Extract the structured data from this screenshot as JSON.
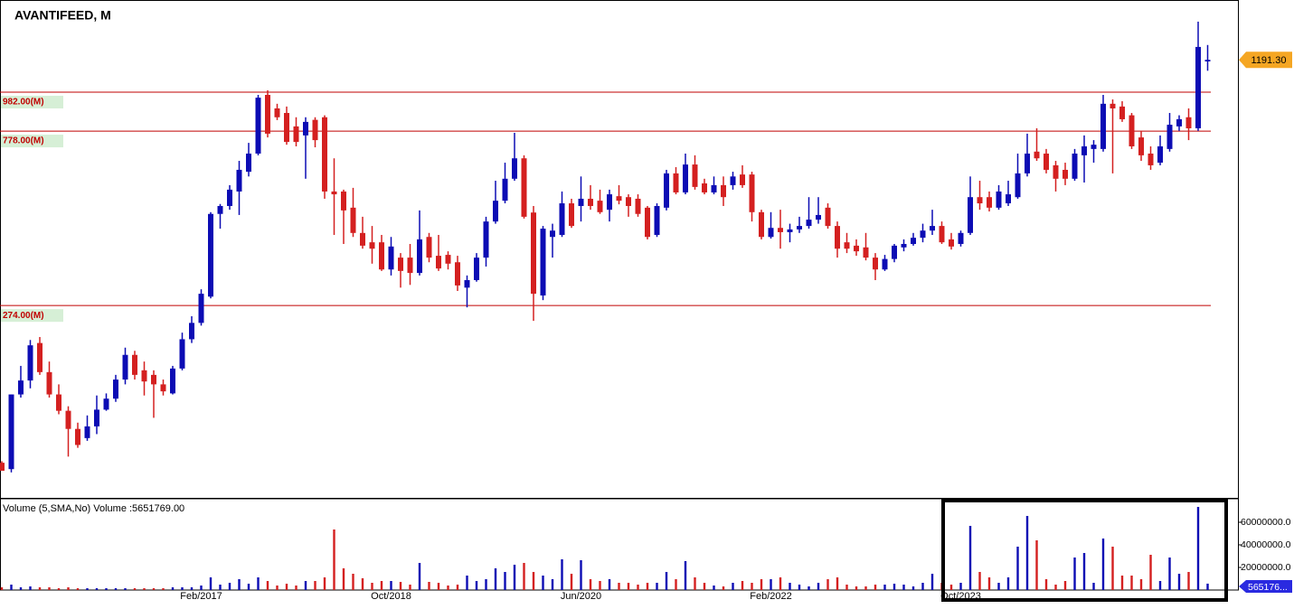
{
  "chart_data": [
    {
      "type": "candlestick",
      "title": "AVANTIFEED, M",
      "categories": [
        null,
        null,
        null,
        null,
        null,
        null,
        null,
        null,
        null,
        null,
        null,
        null,
        null,
        null,
        null,
        null,
        null,
        null,
        null,
        null,
        null,
        "Feb/2017",
        null,
        null,
        null,
        null,
        null,
        null,
        null,
        null,
        null,
        null,
        null,
        null,
        null,
        null,
        null,
        null,
        null,
        null,
        null,
        "Oct/2018",
        null,
        null,
        null,
        null,
        null,
        null,
        null,
        null,
        null,
        null,
        null,
        null,
        null,
        null,
        null,
        null,
        null,
        null,
        null,
        "Jun/2020",
        null,
        null,
        null,
        null,
        null,
        null,
        null,
        null,
        null,
        null,
        null,
        null,
        null,
        null,
        null,
        null,
        null,
        null,
        null,
        "Feb/2022",
        null,
        null,
        null,
        null,
        null,
        null,
        null,
        null,
        null,
        null,
        null,
        null,
        null,
        null,
        null,
        null,
        null,
        null,
        null,
        "Oct/2023",
        null,
        null,
        null,
        null,
        null,
        null,
        null,
        null,
        null,
        null,
        null,
        null,
        null,
        null,
        null,
        null,
        null,
        null,
        null,
        null,
        null,
        null,
        null,
        null,
        null,
        null
      ],
      "open": [
        107,
        103,
        161,
        175,
        219,
        184,
        161,
        146,
        131,
        124,
        133,
        147,
        157,
        176,
        204,
        186,
        181,
        171,
        162,
        188,
        224,
        247,
        289,
        474,
        497,
        542,
        610,
        680,
        966,
        891,
        867,
        800,
        758,
        832,
        845,
        542,
        542,
        492,
        423,
        400,
        400,
        340,
        365,
        365,
        333,
        413,
        369,
        371,
        355,
        305,
        319,
        365,
        453,
        513,
        585,
        661,
        478,
        291,
        413,
        418,
        505,
        497,
        519,
        513,
        486,
        527,
        524,
        519,
        492,
        418,
        492,
        604,
        539,
        637,
        569,
        539,
        563,
        563,
        600,
        600,
        479,
        413,
        436,
        425,
        432,
        441,
        458,
        492,
        441,
        400,
        392,
        388,
        365,
        340,
        362,
        388,
        396,
        411,
        429,
        441,
        407,
        396,
        423,
        524,
        524,
        492,
        505,
        524,
        604,
        688,
        680,
        634,
        617,
        585,
        673,
        699,
        699,
        916,
        901,
        855,
        749,
        680,
        644,
        699,
        800,
        845,
        791,
        1180
      ],
      "high": [
        108,
        161,
        191,
        223,
        227,
        196,
        171,
        150,
        136,
        142,
        160,
        162,
        181,
        213,
        209,
        196,
        186,
        176,
        191,
        233,
        257,
        302,
        479,
        503,
        563,
        651,
        725,
        966,
        993,
        916,
        901,
        845,
        845,
        845,
        855,
        661,
        548,
        554,
        466,
        441,
        418,
        413,
        375,
        396,
        484,
        423,
        418,
        379,
        369,
        328,
        375,
        466,
        578,
        644,
        770,
        673,
        497,
        441,
        447,
        542,
        519,
        593,
        563,
        548,
        548,
        563,
        533,
        533,
        497,
        505,
        617,
        627,
        680,
        673,
        585,
        593,
        593,
        610,
        634,
        610,
        486,
        479,
        486,
        447,
        466,
        524,
        524,
        505,
        453,
        423,
        407,
        423,
        375,
        371,
        396,
        407,
        423,
        447,
        486,
        453,
        423,
        429,
        593,
        578,
        542,
        563,
        578,
        680,
        766,
        791,
        699,
        651,
        644,
        699,
        758,
        737,
        966,
        940,
        930,
        867,
        779,
        710,
        758,
        867,
        855,
        891,
        1497,
        1302
      ],
      "low": [
        102,
        101,
        158,
        167,
        181,
        158,
        143,
        111,
        117,
        122,
        127,
        146,
        154,
        171,
        176,
        160,
        140,
        160,
        161,
        186,
        219,
        243,
        286,
        434,
        486,
        471,
        593,
        673,
        749,
        831,
        717,
        710,
        585,
        706,
        519,
        418,
        396,
        413,
        385,
        352,
        337,
        328,
        305,
        310,
        328,
        355,
        337,
        340,
        299,
        271,
        316,
        346,
        447,
        505,
        578,
        461,
        250,
        283,
        365,
        413,
        436,
        453,
        486,
        474,
        453,
        502,
        466,
        466,
        407,
        413,
        484,
        533,
        533,
        548,
        533,
        533,
        497,
        548,
        554,
        453,
        407,
        409,
        385,
        400,
        423,
        434,
        447,
        434,
        365,
        375,
        369,
        359,
        319,
        337,
        355,
        379,
        392,
        400,
        418,
        396,
        383,
        390,
        418,
        486,
        481,
        486,
        497,
        519,
        593,
        651,
        604,
        542,
        563,
        578,
        572,
        644,
        688,
        604,
        822,
        699,
        651,
        617,
        634,
        688,
        779,
        737,
        779,
        1116
      ],
      "close": [
        102,
        161,
        175,
        216,
        184,
        161,
        146,
        131,
        119,
        133,
        147,
        157,
        176,
        204,
        181,
        174,
        171,
        164,
        188,
        224,
        247,
        294,
        474,
        497,
        548,
        617,
        680,
        950,
        766,
        845,
        729,
        729,
        822,
        737,
        542,
        533,
        484,
        423,
        392,
        385,
        340,
        390,
        337,
        333,
        407,
        365,
        342,
        352,
        309,
        319,
        365,
        453,
        513,
        585,
        661,
        466,
        294,
        434,
        429,
        505,
        441,
        519,
        497,
        479,
        533,
        513,
        497,
        474,
        413,
        497,
        604,
        539,
        637,
        557,
        539,
        563,
        524,
        593,
        563,
        479,
        413,
        436,
        425,
        432,
        441,
        458,
        471,
        441,
        385,
        385,
        379,
        365,
        340,
        362,
        392,
        396,
        411,
        429,
        441,
        400,
        390,
        423,
        524,
        505,
        492,
        542,
        533,
        604,
        680,
        661,
        617,
        585,
        585,
        680,
        710,
        717,
        916,
        891,
        835,
        710,
        673,
        634,
        710,
        808,
        835,
        791,
        1287,
        1191.3
      ],
      "up_color": "#0c0cb4",
      "down_color": "#d42020",
      "ylim": [
        87.2,
        1704
      ],
      "log_scale": true,
      "levels": [
        {
          "value": 982,
          "label": "982.00(M)"
        },
        {
          "value": 778,
          "label": "778.00(M)"
        },
        {
          "value": 274,
          "label": "274.00(M)"
        }
      ],
      "level_color": "#c00000",
      "last_price_tag": "1191.30",
      "tag_color": "#f5a623"
    },
    {
      "type": "bar",
      "title": "Volume (5,SMA,No) Volume :5651769.00",
      "values": [
        2400000,
        4800000,
        2400000,
        3200000,
        2400000,
        2400000,
        1600000,
        2400000,
        1600000,
        1600000,
        1600000,
        1600000,
        1600000,
        1600000,
        1600000,
        1600000,
        1600000,
        1600000,
        2400000,
        2400000,
        2400000,
        4000000,
        11200000,
        4800000,
        6400000,
        9600000,
        5600000,
        11200000,
        8000000,
        4000000,
        5600000,
        4000000,
        8000000,
        8000000,
        11200000,
        53600000,
        19200000,
        14400000,
        10400000,
        6400000,
        8000000,
        8000000,
        7200000,
        4800000,
        24000000,
        7200000,
        6400000,
        4000000,
        4800000,
        12800000,
        8000000,
        9600000,
        19200000,
        16000000,
        22400000,
        24000000,
        16000000,
        12800000,
        9600000,
        27200000,
        14400000,
        26400000,
        9600000,
        8000000,
        9600000,
        6400000,
        6400000,
        4800000,
        6400000,
        6400000,
        16000000,
        9600000,
        25600000,
        11200000,
        6400000,
        4000000,
        3200000,
        6400000,
        8000000,
        6400000,
        9600000,
        9600000,
        11200000,
        6400000,
        4800000,
        3200000,
        6400000,
        9600000,
        11200000,
        4800000,
        3200000,
        3200000,
        4800000,
        4800000,
        5600000,
        4800000,
        3200000,
        6400000,
        14400000,
        6400000,
        4800000,
        6400000,
        56800000,
        16000000,
        11200000,
        6400000,
        11200000,
        38400000,
        65600000,
        44000000,
        9600000,
        4800000,
        8000000,
        28800000,
        32800000,
        6400000,
        45600000,
        38400000,
        12800000,
        12800000,
        9600000,
        31200000,
        8000000,
        28800000,
        14400000,
        16000000,
        73600000,
        5651769
      ],
      "ylim": [
        0,
        80000000
      ],
      "yticks": [
        {
          "value": 20000000,
          "label": "20000000.0"
        },
        {
          "value": 40000000,
          "label": "40000000.0"
        },
        {
          "value": 60000000,
          "label": "60000000.0"
        }
      ],
      "last_value_tag": "565176...",
      "tag_color": "#2a2ae0"
    }
  ]
}
